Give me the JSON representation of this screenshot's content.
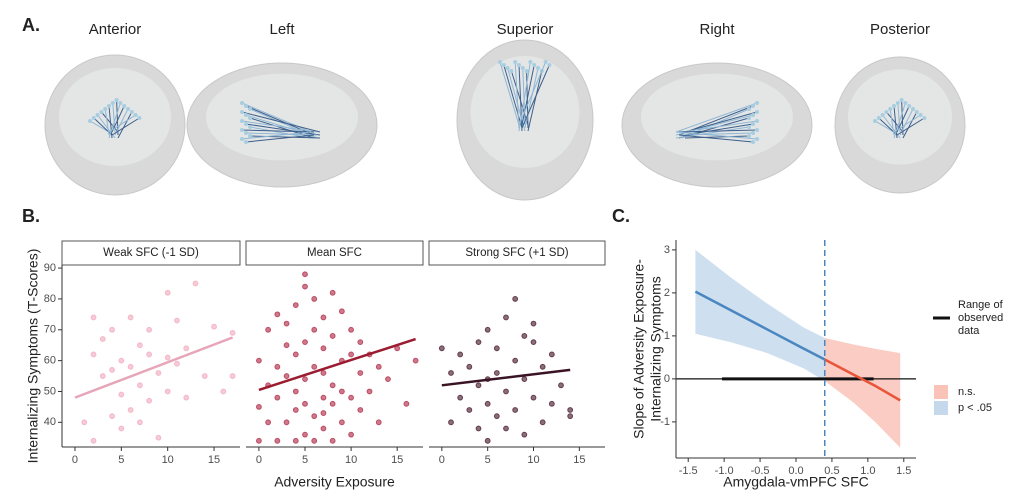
{
  "panel_labels": [
    "A.",
    "B.",
    "C."
  ],
  "panel_a": {
    "views": [
      "Anterior",
      "Left",
      "Superior",
      "Right",
      "Posterior"
    ]
  },
  "chart_data": [
    {
      "type": "scatter",
      "title": "Weak SFC (-1 SD)",
      "ylabel": "Internalizing Symptoms (T-Scores)",
      "xlim": [
        -1.4,
        17.8
      ],
      "ylim": [
        32,
        91
      ],
      "xticks": [
        0,
        5,
        10,
        15
      ],
      "yticks": [
        40,
        50,
        60,
        70,
        80,
        90
      ],
      "color": "#f2b3c4",
      "line_color": "#e6a5b8",
      "points": {
        "x": [
          2,
          2,
          3,
          3,
          4,
          4,
          5,
          5,
          5,
          6,
          6,
          6,
          7,
          7,
          7,
          8,
          8,
          8,
          9,
          9,
          10,
          10,
          10,
          11,
          11,
          12,
          12,
          13,
          14,
          15,
          16,
          17,
          17,
          1,
          2,
          4
        ],
        "y": [
          74,
          34,
          67,
          55,
          70,
          42,
          60,
          38,
          49,
          74,
          58,
          44,
          65,
          52,
          40,
          70,
          47,
          62,
          56,
          35,
          82,
          61,
          50,
          73,
          59,
          64,
          48,
          85,
          55,
          71,
          50,
          55,
          69,
          40,
          62,
          57
        ]
      },
      "fit": {
        "x": [
          0,
          17
        ],
        "y": [
          48,
          67.5
        ]
      }
    },
    {
      "type": "scatter",
      "title": "Mean SFC",
      "xlabel": "Adversity Exposure",
      "xlim": [
        -1.4,
        17.8
      ],
      "ylim": [
        32,
        91
      ],
      "xticks": [
        0,
        5,
        10,
        15
      ],
      "color": "#b8405a",
      "line_color": "#9b1b30",
      "points": {
        "x": [
          0,
          0,
          0,
          1,
          1,
          1,
          2,
          2,
          2,
          2,
          3,
          3,
          3,
          3,
          4,
          4,
          4,
          4,
          4,
          5,
          5,
          5,
          5,
          5,
          6,
          6,
          6,
          6,
          6,
          7,
          7,
          7,
          7,
          7,
          8,
          8,
          8,
          8,
          8,
          9,
          9,
          9,
          9,
          10,
          10,
          10,
          10,
          11,
          11,
          11,
          12,
          12,
          13,
          13,
          14,
          15,
          16,
          17,
          5,
          7
        ],
        "y": [
          34,
          45,
          60,
          40,
          52,
          70,
          34,
          48,
          58,
          75,
          40,
          55,
          65,
          72,
          34,
          44,
          50,
          62,
          78,
          36,
          46,
          54,
          66,
          88,
          34,
          42,
          58,
          70,
          80,
          38,
          48,
          56,
          64,
          74,
          34,
          46,
          52,
          68,
          82,
          40,
          50,
          60,
          76,
          36,
          48,
          62,
          70,
          44,
          56,
          66,
          50,
          62,
          40,
          58,
          54,
          64,
          46,
          60,
          84,
          43
        ]
      },
      "fit": {
        "x": [
          0,
          17
        ],
        "y": [
          50.5,
          67
        ]
      }
    },
    {
      "type": "scatter",
      "title": "Strong SFC (+1 SD)",
      "xlim": [
        -1.4,
        17.8
      ],
      "ylim": [
        32,
        91
      ],
      "xticks": [
        0,
        5,
        10,
        15
      ],
      "color": "#5a3042",
      "line_color": "#3a1424",
      "points": {
        "x": [
          0,
          1,
          1,
          2,
          2,
          3,
          3,
          4,
          4,
          4,
          5,
          5,
          5,
          6,
          6,
          6,
          7,
          7,
          7,
          8,
          8,
          8,
          9,
          9,
          10,
          10,
          10,
          11,
          11,
          12,
          12,
          13,
          14,
          14,
          5,
          9
        ],
        "y": [
          64,
          40,
          56,
          48,
          62,
          44,
          58,
          38,
          52,
          66,
          34,
          46,
          70,
          42,
          56,
          64,
          38,
          50,
          74,
          44,
          60,
          80,
          36,
          54,
          48,
          66,
          72,
          40,
          58,
          46,
          62,
          52,
          44,
          42,
          54,
          68
        ]
      },
      "fit": {
        "x": [
          0,
          14
        ],
        "y": [
          52,
          57
        ]
      }
    },
    {
      "type": "line",
      "xlabel": "Amygdala-vmPFC SFC",
      "ylabel": [
        "Slope of Adversity Exposure-",
        "Internalizing Symptoms"
      ],
      "xlim": [
        -1.67,
        1.67
      ],
      "ylim": [
        -1.84,
        3.23
      ],
      "xticks": [
        {
          "value": -1.5,
          "label": "-1.5"
        },
        {
          "value": -1,
          "label": "-1.0"
        },
        {
          "value": -0.5,
          "label": "-0.5"
        },
        {
          "value": 0,
          "label": "0.0"
        },
        0.5,
        {
          "value": 1,
          "label": "1.0"
        },
        1.5
      ],
      "yticks": [
        -1,
        0,
        1,
        2,
        3
      ],
      "hline": 0,
      "jn_point": 0.4,
      "observed_range": [
        -1.03,
        1.08
      ],
      "range_legend": [
        "Range of",
        "observed",
        "data"
      ],
      "series": [
        {
          "name": "p < .05",
          "color": "#4a86c0",
          "band_color": "#c6d9ec",
          "x": [
            -1.4,
            -0.9,
            -0.4,
            0.1,
            0.4
          ],
          "values": [
            2.03,
            1.59,
            1.15,
            0.71,
            0.45
          ],
          "upper": [
            3.0,
            2.35,
            1.75,
            1.2,
            0.95
          ],
          "lower": [
            1.05,
            0.85,
            0.6,
            0.25,
            -0.05
          ]
        },
        {
          "name": "n.s.",
          "color": "#e8553a",
          "band_color": "#f9c3b8",
          "x": [
            0.4,
            0.8,
            1.1,
            1.45
          ],
          "values": [
            0.45,
            0.1,
            -0.16,
            -0.5
          ],
          "upper": [
            0.95,
            0.8,
            0.7,
            0.6
          ],
          "lower": [
            -0.05,
            -0.55,
            -1.0,
            -1.6
          ]
        }
      ]
    }
  ]
}
